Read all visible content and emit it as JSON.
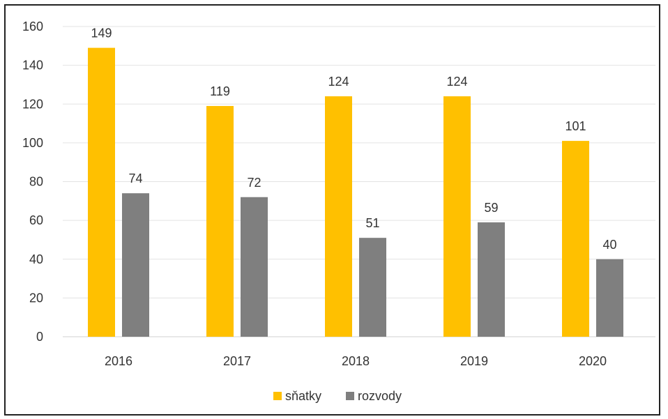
{
  "chart_data": {
    "type": "bar",
    "categories": [
      "2016",
      "2017",
      "2018",
      "2019",
      "2020"
    ],
    "series": [
      {
        "name": "sňatky",
        "values": [
          149,
          119,
          124,
          124,
          101
        ],
        "color": "#FFC000"
      },
      {
        "name": "rozvody",
        "values": [
          74,
          72,
          51,
          59,
          40
        ],
        "color": "#7F7F7F"
      }
    ],
    "title": "",
    "xlabel": "",
    "ylabel": "",
    "ylim": [
      0,
      160
    ],
    "yticks": [
      "0",
      "20",
      "40",
      "60",
      "80",
      "100",
      "120",
      "140",
      "160"
    ],
    "grid": true,
    "legend_position": "bottom-center"
  }
}
